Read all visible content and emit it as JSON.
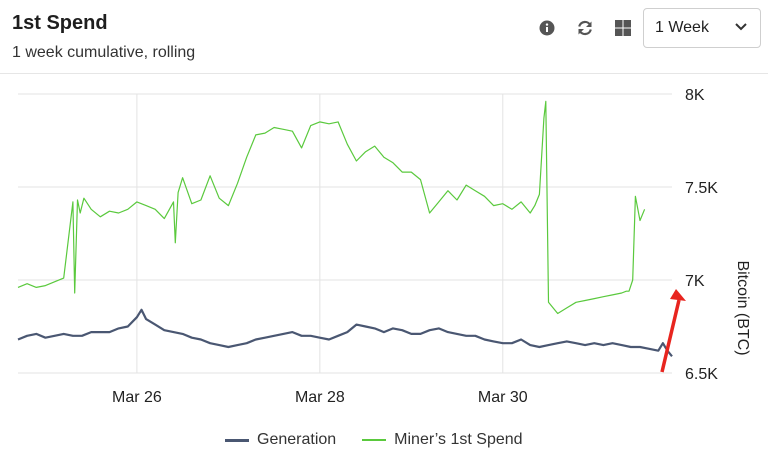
{
  "header": {
    "title": "1st Spend",
    "subtitle": "1 week cumulative, rolling",
    "info_icon": "info-icon",
    "refresh_icon": "refresh-icon",
    "grid_icon": "grid-icon",
    "range_select": {
      "value": "1 Week"
    }
  },
  "colors": {
    "generation": "#4a5772",
    "miners_spend": "#5ac93d",
    "annotation_arrow": "#e8251f"
  },
  "chart_data": {
    "type": "line",
    "xlabel": "",
    "ylabel": "Bitcoin (BTC)",
    "ylim": [
      6500,
      8000
    ],
    "yticks": [
      "6.5K",
      "7K",
      "7.5K",
      "8K"
    ],
    "ytick_values": [
      6500,
      7000,
      7500,
      8000
    ],
    "xticks": [
      "Mar 26",
      "Mar 28",
      "Mar 30"
    ],
    "xtick_values": [
      26,
      28,
      30
    ],
    "xlim": [
      24.7,
      31.85
    ],
    "grid": true,
    "legend_position": "bottom",
    "series": [
      {
        "name": "Generation",
        "x": [
          24.7,
          24.8,
          24.9,
          25.0,
          25.1,
          25.2,
          25.3,
          25.4,
          25.5,
          25.6,
          25.7,
          25.8,
          25.9,
          26.0,
          26.05,
          26.1,
          26.2,
          26.3,
          26.4,
          26.5,
          26.6,
          26.7,
          26.8,
          26.9,
          27.0,
          27.1,
          27.2,
          27.3,
          27.4,
          27.5,
          27.6,
          27.7,
          27.8,
          27.9,
          28.0,
          28.1,
          28.2,
          28.3,
          28.4,
          28.5,
          28.6,
          28.7,
          28.8,
          28.9,
          29.0,
          29.1,
          29.2,
          29.3,
          29.4,
          29.5,
          29.6,
          29.7,
          29.8,
          29.9,
          30.0,
          30.1,
          30.2,
          30.3,
          30.4,
          30.5,
          30.6,
          30.7,
          30.8,
          30.9,
          31.0,
          31.1,
          31.2,
          31.3,
          31.4,
          31.5,
          31.6,
          31.7,
          31.75,
          31.8,
          31.85
        ],
        "y": [
          6680,
          6700,
          6710,
          6690,
          6700,
          6710,
          6700,
          6700,
          6720,
          6720,
          6720,
          6740,
          6750,
          6800,
          6840,
          6790,
          6760,
          6730,
          6720,
          6710,
          6690,
          6680,
          6660,
          6650,
          6640,
          6650,
          6660,
          6680,
          6690,
          6700,
          6710,
          6720,
          6700,
          6700,
          6690,
          6680,
          6700,
          6720,
          6760,
          6750,
          6740,
          6720,
          6740,
          6730,
          6710,
          6710,
          6730,
          6740,
          6720,
          6710,
          6700,
          6700,
          6680,
          6670,
          6660,
          6660,
          6680,
          6650,
          6640,
          6650,
          6660,
          6670,
          6660,
          6650,
          6660,
          6650,
          6660,
          6650,
          6640,
          6640,
          6630,
          6620,
          6660,
          6620,
          6590
        ]
      },
      {
        "name": "Miner’s 1st Spend",
        "x": [
          24.7,
          24.8,
          24.9,
          25.0,
          25.2,
          25.3,
          25.32,
          25.35,
          25.38,
          25.42,
          25.5,
          25.6,
          25.7,
          25.8,
          25.9,
          26.0,
          26.1,
          26.2,
          26.3,
          26.4,
          26.42,
          26.45,
          26.5,
          26.6,
          26.7,
          26.8,
          26.9,
          27.0,
          27.1,
          27.2,
          27.3,
          27.4,
          27.5,
          27.6,
          27.7,
          27.8,
          27.9,
          28.0,
          28.1,
          28.2,
          28.3,
          28.4,
          28.5,
          28.6,
          28.7,
          28.8,
          28.9,
          29.0,
          29.1,
          29.2,
          29.3,
          29.4,
          29.5,
          29.6,
          29.7,
          29.8,
          29.9,
          30.0,
          30.1,
          30.2,
          30.3,
          30.35,
          30.4,
          30.45,
          30.47,
          30.5,
          30.6,
          30.7,
          30.8,
          30.9,
          31.0,
          31.1,
          31.2,
          31.3,
          31.35,
          31.38,
          31.42,
          31.45,
          31.5,
          31.55
        ],
        "y": [
          6960,
          6980,
          6960,
          6970,
          7010,
          7420,
          6930,
          7430,
          7360,
          7440,
          7380,
          7340,
          7370,
          7360,
          7380,
          7420,
          7400,
          7380,
          7330,
          7420,
          7200,
          7470,
          7550,
          7410,
          7430,
          7560,
          7440,
          7400,
          7520,
          7660,
          7780,
          7790,
          7820,
          7810,
          7800,
          7710,
          7830,
          7850,
          7840,
          7850,
          7730,
          7640,
          7690,
          7720,
          7660,
          7630,
          7580,
          7580,
          7540,
          7360,
          7420,
          7480,
          7430,
          7510,
          7480,
          7450,
          7400,
          7410,
          7380,
          7420,
          7360,
          7400,
          7460,
          7870,
          7960,
          6880,
          6820,
          6850,
          6880,
          6890,
          6900,
          6910,
          6920,
          6930,
          6940,
          6940,
          7000,
          7450,
          7320,
          7380
        ]
      }
    ]
  }
}
